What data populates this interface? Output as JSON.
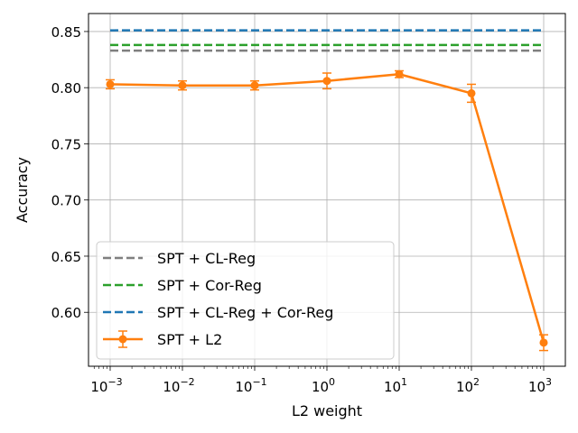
{
  "chart_data": {
    "type": "line",
    "title": "",
    "xlabel": "L2 weight",
    "ylabel": "Accuracy",
    "xscale": "log",
    "xlim_exp": [
      -3.3,
      3.3
    ],
    "ylim": [
      0.552,
      0.866
    ],
    "grid": true,
    "legend_position": "lower-left",
    "x_ticks": [
      {
        "exp": -3,
        "base": "10",
        "sup": "−3"
      },
      {
        "exp": -2,
        "base": "10",
        "sup": "−2"
      },
      {
        "exp": -1,
        "base": "10",
        "sup": "−1"
      },
      {
        "exp": 0,
        "base": "10",
        "sup": "0"
      },
      {
        "exp": 1,
        "base": "10",
        "sup": "1"
      },
      {
        "exp": 2,
        "base": "10",
        "sup": "2"
      },
      {
        "exp": 3,
        "base": "10",
        "sup": "3"
      }
    ],
    "y_ticks": [
      {
        "value": 0.6,
        "label": "0.60"
      },
      {
        "value": 0.65,
        "label": "0.65"
      },
      {
        "value": 0.7,
        "label": "0.70"
      },
      {
        "value": 0.75,
        "label": "0.75"
      },
      {
        "value": 0.8,
        "label": "0.80"
      },
      {
        "value": 0.85,
        "label": "0.85"
      }
    ],
    "baselines": [
      {
        "name": "SPT + CL-Reg",
        "value": 0.833,
        "color": "#7f7f7f"
      },
      {
        "name": "SPT + Cor-Reg",
        "value": 0.838,
        "color": "#2ca02c"
      },
      {
        "name": "SPT + CL-Reg + Cor-Reg",
        "value": 0.851,
        "color": "#1f77b4"
      }
    ],
    "series": [
      {
        "name": "SPT + L2",
        "color": "#ff7f0e",
        "x": [
          0.001,
          0.01,
          0.1,
          1,
          10,
          100,
          1000
        ],
        "y": [
          0.803,
          0.802,
          0.802,
          0.806,
          0.812,
          0.795,
          0.573
        ],
        "yerr": [
          0.004,
          0.004,
          0.004,
          0.007,
          0.003,
          0.008,
          0.007
        ]
      }
    ]
  }
}
